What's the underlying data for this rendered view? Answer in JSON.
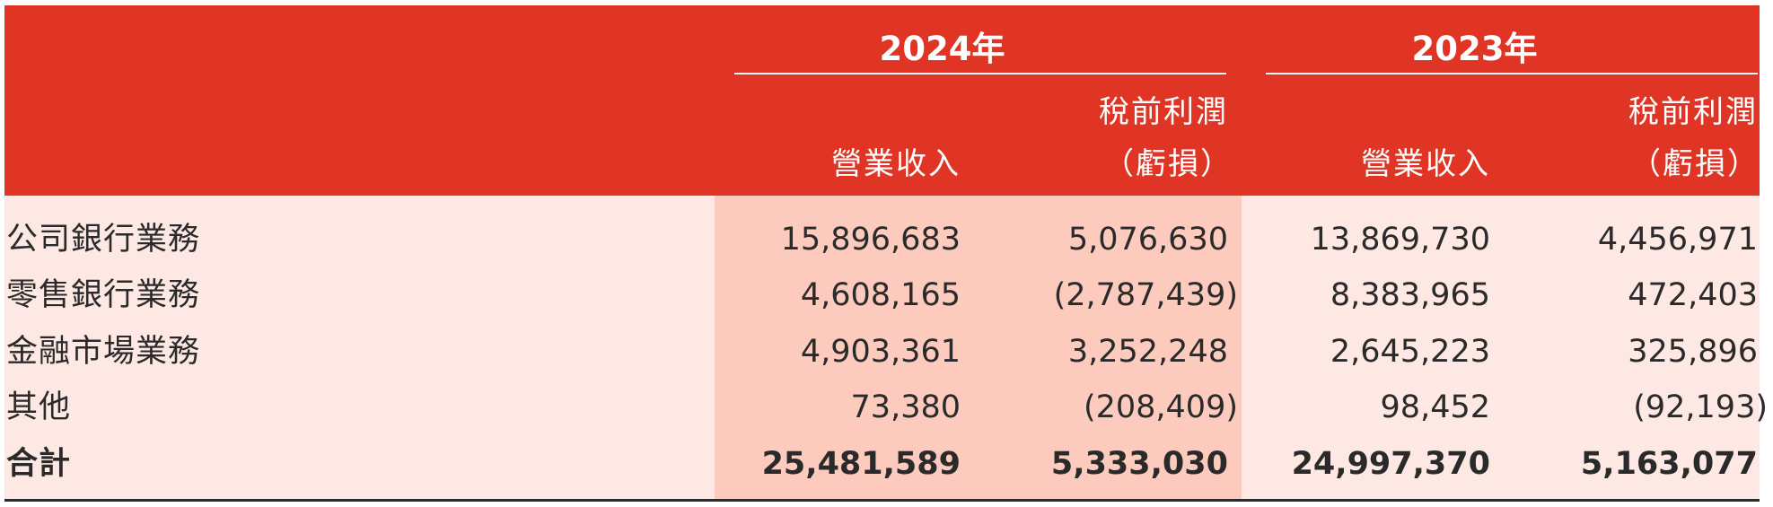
{
  "header": {
    "year_2024": "2024年",
    "year_2023": "2023年",
    "col_revenue": "營業收入",
    "col_profit_line1": "稅前利潤",
    "col_profit_line2": "（虧損）"
  },
  "rows": [
    {
      "label": "公司銀行業務",
      "rev_2024": "15,896,683",
      "pbt_2024": "5,076,630",
      "rev_2023": "13,869,730",
      "pbt_2023": "4,456,971"
    },
    {
      "label": "零售銀行業務",
      "rev_2024": "4,608,165",
      "pbt_2024": "(2,787,439)",
      "rev_2023": "8,383,965",
      "pbt_2023": "472,403"
    },
    {
      "label": "金融市場業務",
      "rev_2024": "4,903,361",
      "pbt_2024": "3,252,248",
      "rev_2023": "2,645,223",
      "pbt_2023": "325,896"
    },
    {
      "label": "其他",
      "rev_2024": "73,380",
      "pbt_2024": "(208,409)",
      "rev_2023": "98,452",
      "pbt_2023": "(92,193)"
    }
  ],
  "total": {
    "label": "合計",
    "rev_2024": "25,481,589",
    "pbt_2024": "5,333,030",
    "rev_2023": "24,997,370",
    "pbt_2023": "5,163,077"
  },
  "colors": {
    "header_bg": "#e03524",
    "body_bg": "#fde8e3",
    "band_2024": "#fccbbd"
  }
}
